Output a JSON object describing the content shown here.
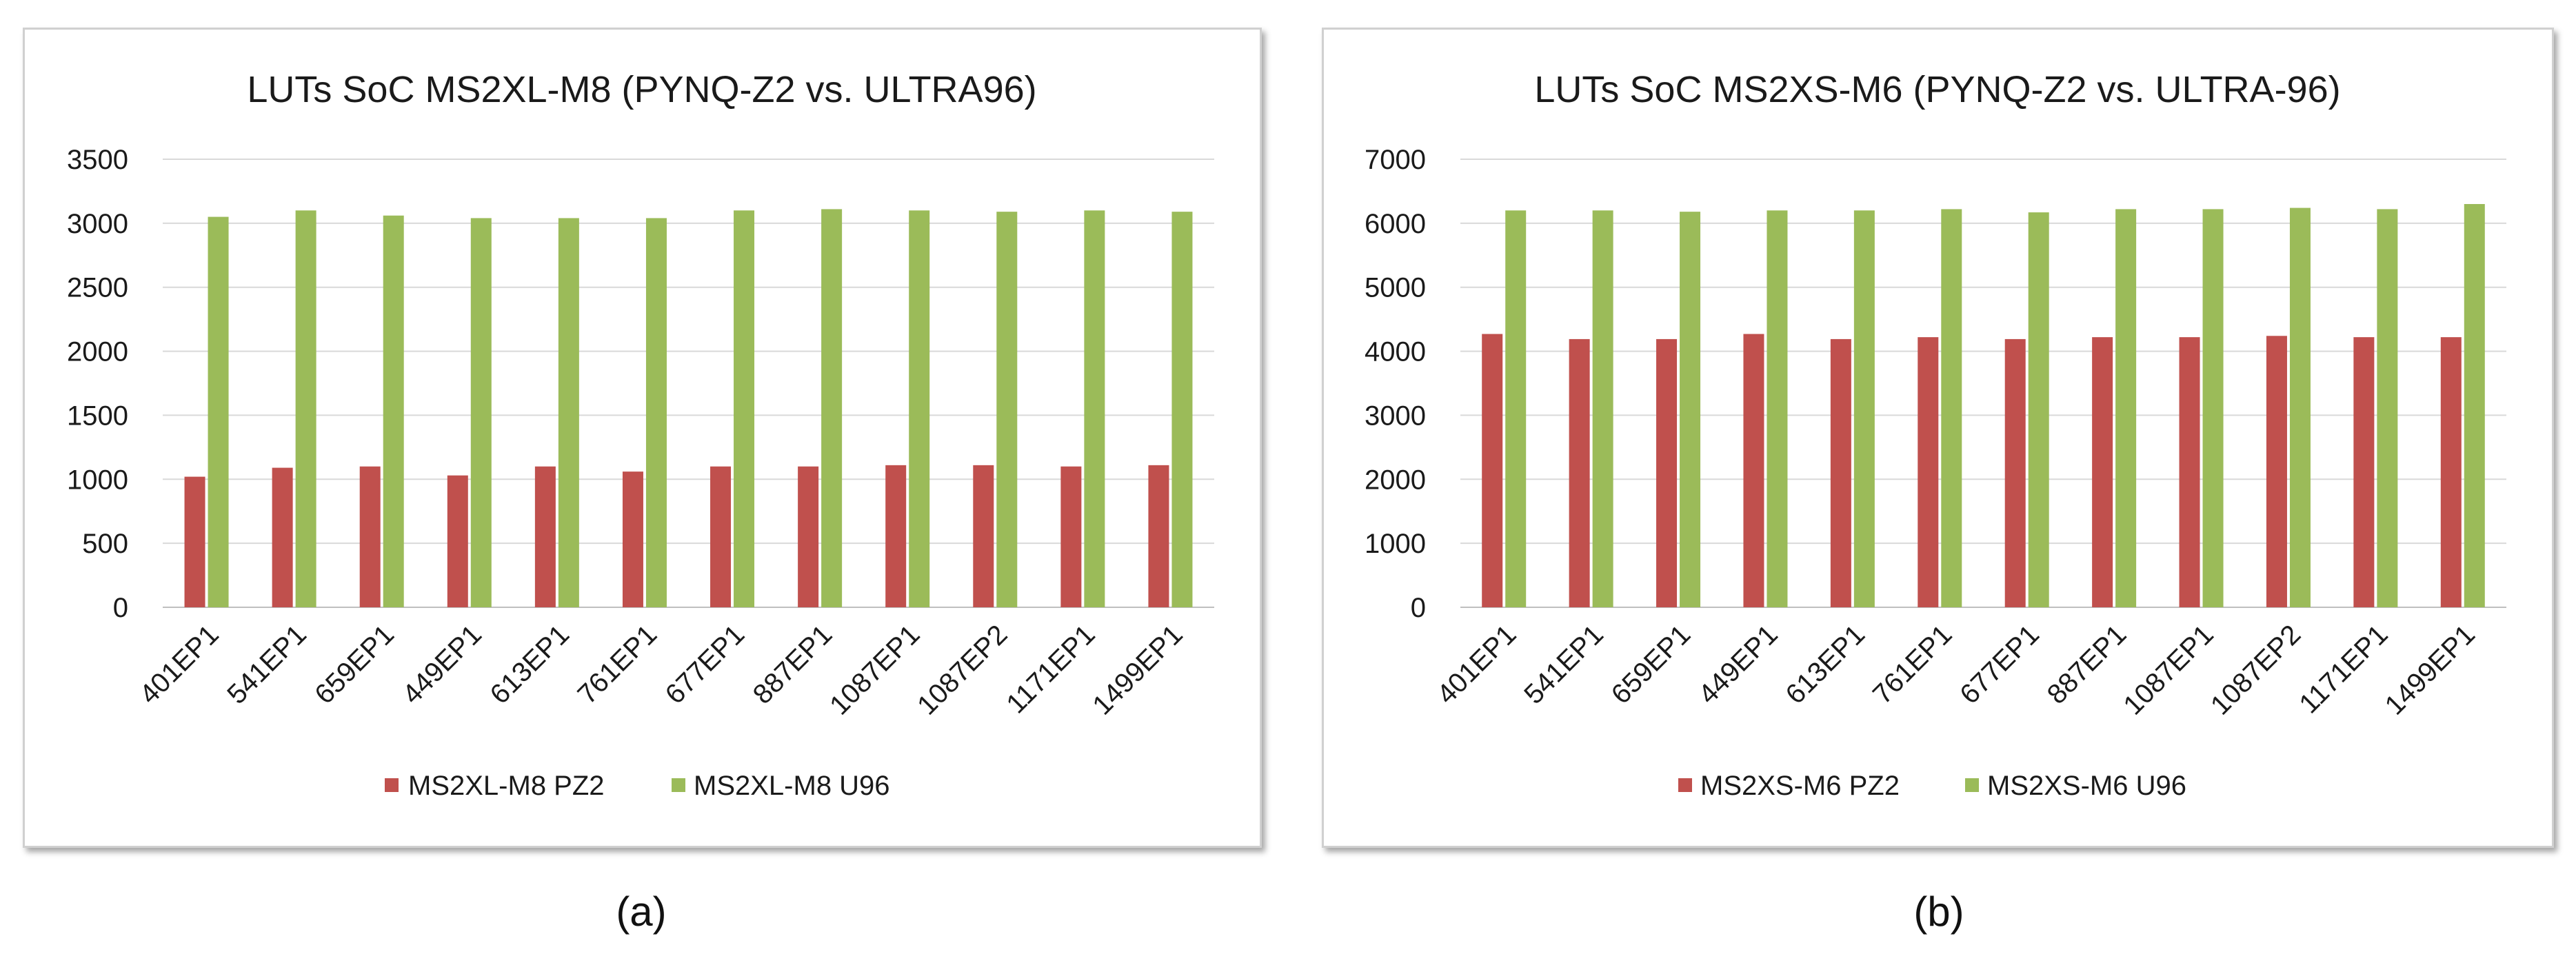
{
  "captions": [
    "(a)",
    "(b)"
  ],
  "chart_data": [
    {
      "type": "bar",
      "title": "LUTs SoC MS2XL-M8 (PYNQ-Z2 vs. ULTRA96)",
      "xlabel": "",
      "ylabel": "",
      "ylim": [
        0,
        3500
      ],
      "yticks": [
        0,
        500,
        1000,
        1500,
        2000,
        2500,
        3000,
        3500
      ],
      "grid": true,
      "legend_position": "bottom",
      "categories": [
        "401EP1",
        "541EP1",
        "659EP1",
        "449EP1",
        "613EP1",
        "761EP1",
        "677EP1",
        "887EP1",
        "1087EP1",
        "1087EP2",
        "1171EP1",
        "1499EP1"
      ],
      "series": [
        {
          "name": "MS2XL-M8 PZ2",
          "color": "#c0504d",
          "values": [
            1020,
            1090,
            1100,
            1030,
            1100,
            1060,
            1100,
            1100,
            1110,
            1110,
            1100,
            1110
          ]
        },
        {
          "name": "MS2XL-M8 U96",
          "color": "#9bbb59",
          "values": [
            3050,
            3100,
            3060,
            3040,
            3040,
            3040,
            3100,
            3110,
            3100,
            3090,
            3100,
            3090
          ]
        }
      ]
    },
    {
      "type": "bar",
      "title": "LUTs SoC MS2XS-M6 (PYNQ-Z2 vs. ULTRA-96)",
      "xlabel": "",
      "ylabel": "",
      "ylim": [
        0,
        7000
      ],
      "yticks": [
        0,
        1000,
        2000,
        3000,
        4000,
        5000,
        6000,
        7000
      ],
      "grid": true,
      "legend_position": "bottom",
      "categories": [
        "401EP1",
        "541EP1",
        "659EP1",
        "449EP1",
        "613EP1",
        "761EP1",
        "677EP1",
        "887EP1",
        "1087EP1",
        "1087EP2",
        "1171EP1",
        "1499EP1"
      ],
      "series": [
        {
          "name": "MS2XS-M6 PZ2",
          "color": "#c0504d",
          "values": [
            4270,
            4190,
            4190,
            4270,
            4190,
            4220,
            4190,
            4220,
            4220,
            4240,
            4220,
            4220
          ]
        },
        {
          "name": "MS2XS-M6 U96",
          "color": "#9bbb59",
          "values": [
            6200,
            6200,
            6180,
            6200,
            6200,
            6220,
            6170,
            6220,
            6220,
            6240,
            6220,
            6300
          ]
        }
      ]
    }
  ]
}
